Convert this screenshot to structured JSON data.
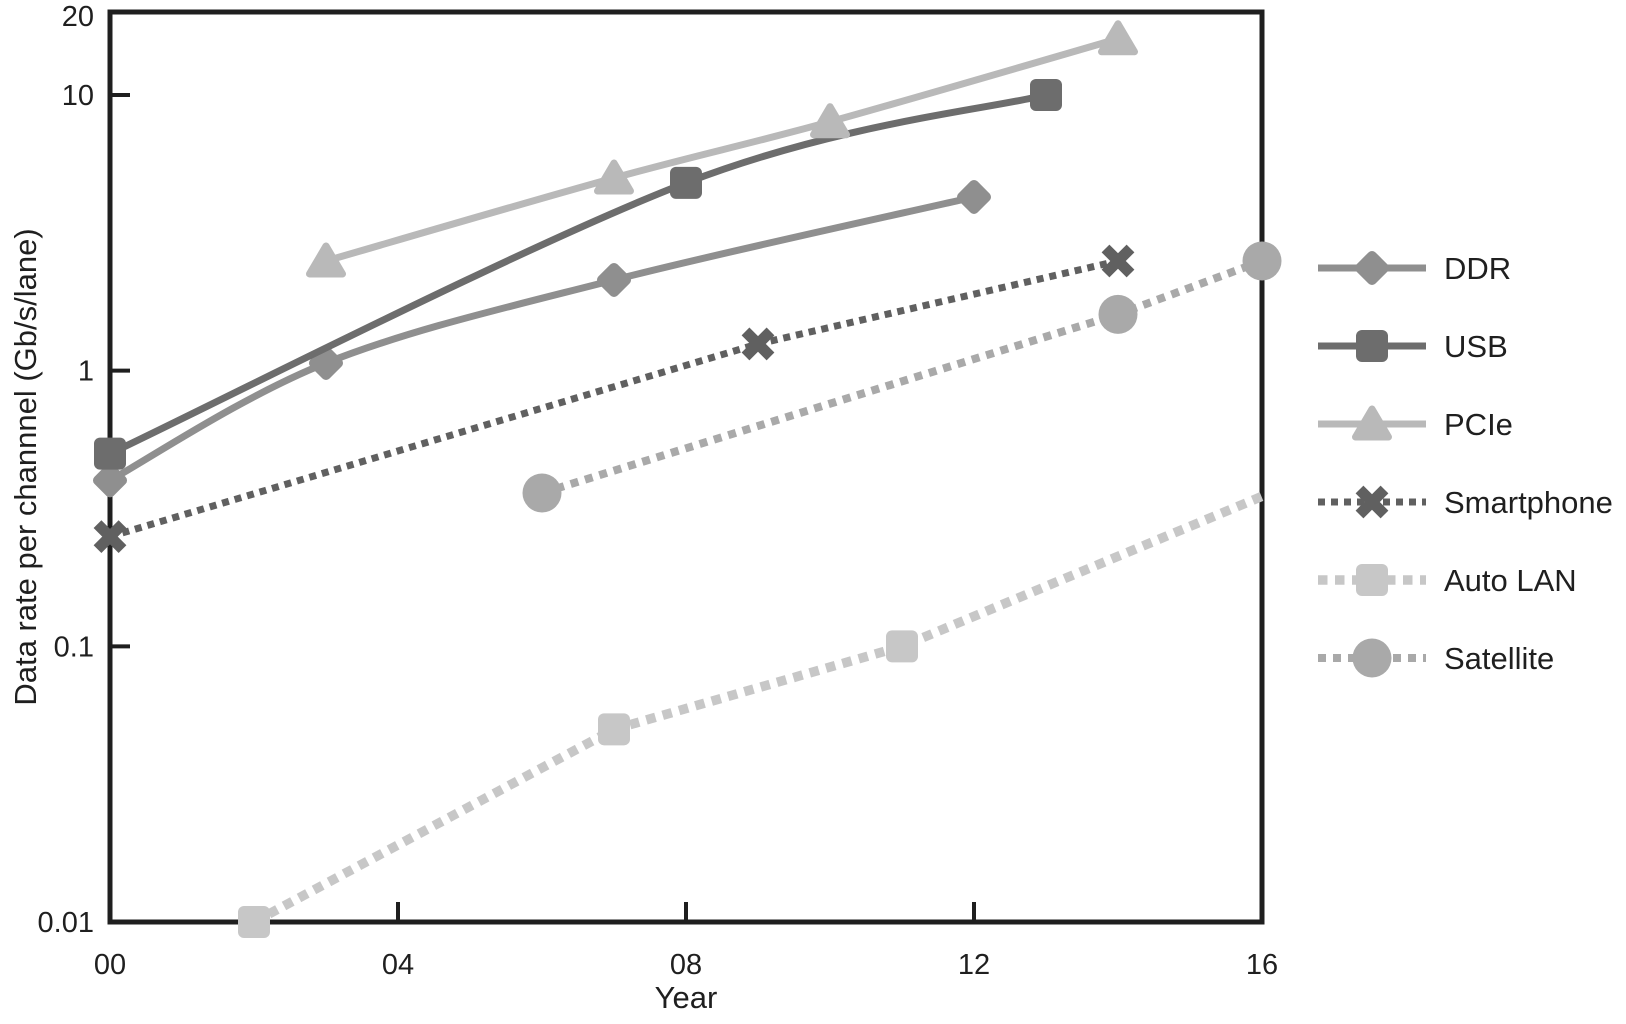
{
  "chart_data": {
    "type": "line",
    "title": "",
    "xlabel": "Year",
    "ylabel": "Data rate per channnel (Gb/s/lane)",
    "x_scale": "linear",
    "y_scale": "log",
    "xlim": [
      0,
      16
    ],
    "ylim": [
      0.01,
      20
    ],
    "grid": false,
    "legend_position": "right-outside",
    "background_color": "#ffffff",
    "axis_color": "#1f1f1f",
    "x_ticks": [
      {
        "value": 0,
        "label": "00"
      },
      {
        "value": 4,
        "label": "04"
      },
      {
        "value": 8,
        "label": "08"
      },
      {
        "value": 12,
        "label": "12"
      },
      {
        "value": 16,
        "label": "16"
      }
    ],
    "y_ticks": [
      {
        "value": 20,
        "label": "20"
      },
      {
        "value": 10,
        "label": "10"
      },
      {
        "value": 1,
        "label": "1"
      },
      {
        "value": 0.1,
        "label": "0.1"
      },
      {
        "value": 0.01,
        "label": "0.01"
      }
    ],
    "series": [
      {
        "name": "DDR",
        "marker": "diamond",
        "line": "solid",
        "color": "#8f8f8f",
        "points": [
          [
            0,
            0.4
          ],
          [
            3,
            1.066
          ],
          [
            7,
            2.133
          ],
          [
            12,
            4.266
          ]
        ]
      },
      {
        "name": "USB",
        "marker": "square",
        "line": "solid",
        "color": "#6d6d6d",
        "points": [
          [
            0,
            0.5
          ],
          [
            8,
            4.8
          ],
          [
            13,
            10
          ]
        ]
      },
      {
        "name": "PCIe",
        "marker": "triangle",
        "line": "solid",
        "color": "#b9b9b9",
        "points": [
          [
            3,
            2.5
          ],
          [
            7,
            5
          ],
          [
            10,
            8
          ],
          [
            14,
            16
          ]
        ]
      },
      {
        "name": "Smartphone",
        "marker": "x",
        "line": "dotted",
        "color": "#606060",
        "points": [
          [
            0,
            0.25
          ],
          [
            9,
            1.25
          ],
          [
            14,
            2.5
          ]
        ]
      },
      {
        "name": "Auto LAN",
        "marker": "square",
        "line": "dotted",
        "color": "#c7c7c7",
        "points": [
          [
            2,
            0.01
          ],
          [
            7,
            0.05
          ],
          [
            11,
            0.1
          ]
        ],
        "trend_end": [
          16,
          0.35
        ]
      },
      {
        "name": "Satellite",
        "marker": "circle",
        "line": "dotted",
        "color": "#a9a9a9",
        "points": [
          [
            6,
            0.36
          ],
          [
            14,
            1.6
          ],
          [
            16,
            2.5
          ]
        ]
      }
    ]
  }
}
